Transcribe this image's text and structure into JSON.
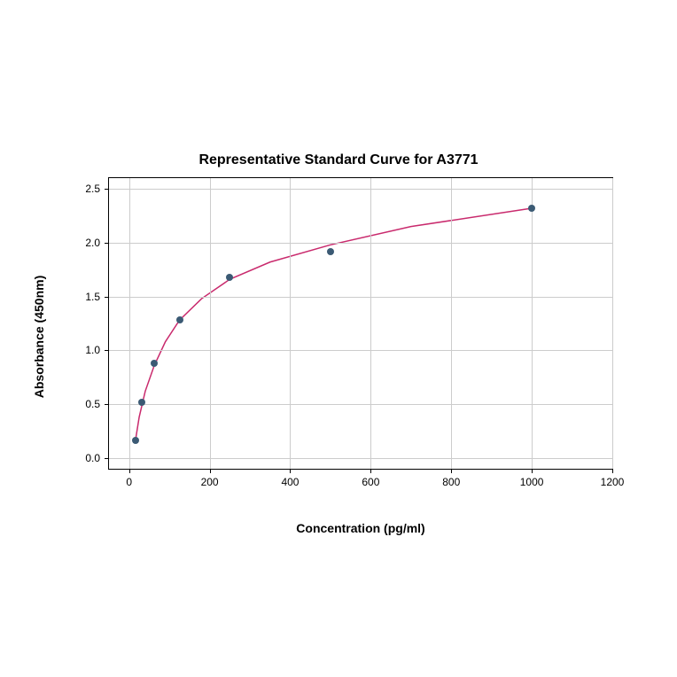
{
  "chart": {
    "type": "scatter-with-curve",
    "title": "Representative Standard Curve for A3771",
    "title_fontsize": 16,
    "title_fontweight": "bold",
    "xlabel": "Concentration (pg/ml)",
    "ylabel": "Absorbance (450nm)",
    "label_fontsize": 14,
    "label_fontweight": "bold",
    "tick_fontsize": 12,
    "xlim": [
      -50,
      1200
    ],
    "ylim": [
      -0.1,
      2.6
    ],
    "xticks": [
      0,
      200,
      400,
      600,
      800,
      1000,
      1200
    ],
    "yticks": [
      0.0,
      0.5,
      1.0,
      1.5,
      2.0,
      2.5
    ],
    "ytick_labels": [
      "0.0",
      "0.5",
      "1.0",
      "1.5",
      "2.0",
      "2.5"
    ],
    "grid": true,
    "grid_color": "#cccccc",
    "background_color": "#ffffff",
    "border_color": "#000000",
    "data_points": {
      "x": [
        15.6,
        31.2,
        62.5,
        125,
        250,
        500,
        1000
      ],
      "y": [
        0.16,
        0.52,
        0.88,
        1.28,
        1.68,
        1.92,
        2.32
      ]
    },
    "marker_color": "#3b5a74",
    "marker_size": 8,
    "marker_style": "circle",
    "curve": {
      "x": [
        15.6,
        25,
        40,
        62.5,
        90,
        125,
        180,
        250,
        350,
        500,
        700,
        1000
      ],
      "y": [
        0.16,
        0.38,
        0.62,
        0.86,
        1.08,
        1.28,
        1.48,
        1.66,
        1.82,
        1.98,
        2.15,
        2.32
      ]
    },
    "curve_color": "#c92a6d",
    "curve_width": 1.5
  }
}
